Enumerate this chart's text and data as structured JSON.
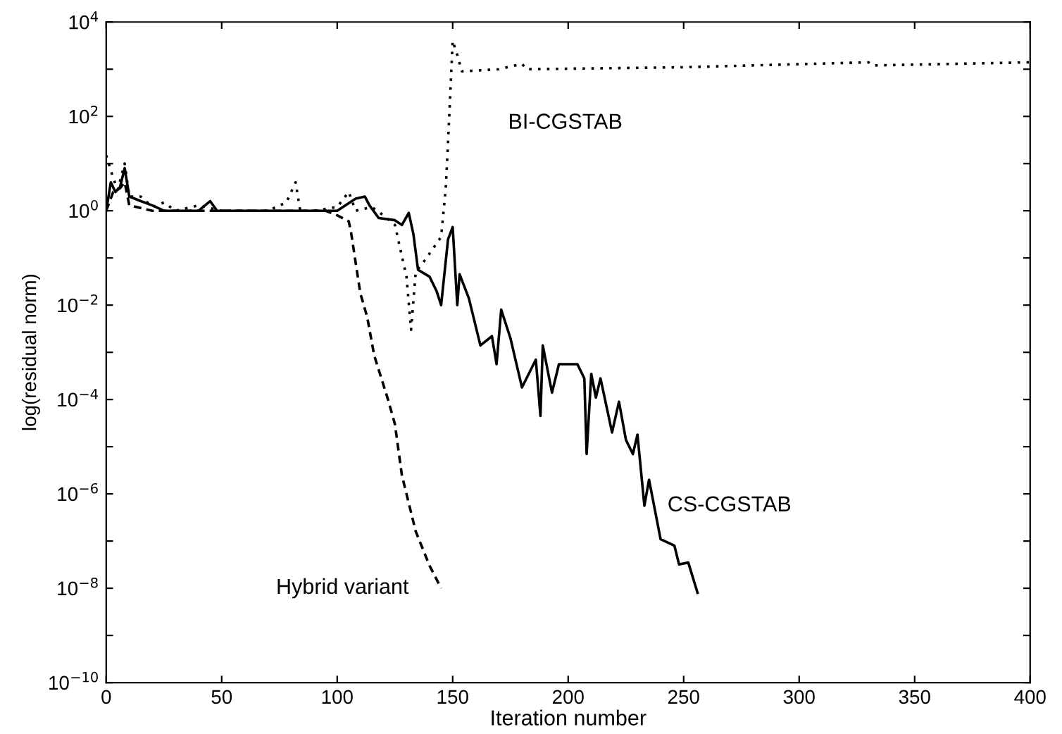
{
  "chart_data": {
    "type": "line",
    "xlabel": "Iteration number",
    "ylabel": "log(residual norm)",
    "log": "y",
    "xlim": [
      0,
      400
    ],
    "ylim": [
      1e-10,
      10000.0
    ],
    "xticks": [
      0,
      50,
      100,
      150,
      200,
      250,
      300,
      350,
      400
    ],
    "yticks": [
      {
        "value": 1e-10,
        "label": "10$^{−10}$"
      },
      {
        "value": 1e-09,
        "label": null
      },
      {
        "value": 1e-08,
        "label": "10$^{−8}$"
      },
      {
        "value": 1e-07,
        "label": null
      },
      {
        "value": 1e-06,
        "label": "10$^{−6}$"
      },
      {
        "value": 1e-05,
        "label": null
      },
      {
        "value": 0.0001,
        "label": "10$^{−4}$"
      },
      {
        "value": 0.001,
        "label": null
      },
      {
        "value": 0.01,
        "label": "10$^{−2}$"
      },
      {
        "value": 0.1,
        "label": null
      },
      {
        "value": 1,
        "label": "10$^{0}$"
      },
      {
        "value": 10,
        "label": null
      },
      {
        "value": 100,
        "label": "10$^{2}$"
      },
      {
        "value": 1000,
        "label": null
      },
      {
        "value": 10000,
        "label": "10$^{4}$"
      }
    ],
    "grid": false,
    "legend": false,
    "marker": "none",
    "series": [
      {
        "name": "BI-CGSTAB",
        "color": "#000000",
        "line_style": "dotted",
        "x": [
          0,
          3,
          5,
          8,
          10,
          15,
          20,
          25,
          30,
          40,
          50,
          70,
          78,
          82,
          84,
          90,
          100,
          105,
          108,
          115,
          120,
          125,
          128,
          130,
          132,
          134,
          138,
          145,
          147,
          148,
          150,
          152,
          154,
          170,
          180,
          182,
          250,
          330,
          332,
          400
        ],
        "values": [
          15,
          5,
          2.8,
          10,
          2,
          2,
          1.2,
          1.5,
          1,
          1.3,
          1,
          1,
          1.5,
          4,
          1,
          1,
          1.2,
          2.5,
          1,
          1.2,
          0.8,
          0.5,
          0.11,
          0.04,
          0.003,
          0.05,
          0.09,
          0.28,
          3,
          28,
          4000,
          2000,
          900,
          1000,
          1300,
          1000,
          1100,
          1400,
          1200,
          1400
        ]
      },
      {
        "name": "CS-CGSTAB",
        "color": "#000000",
        "line_style": "solid",
        "x": [
          0,
          2,
          4,
          6,
          8,
          10,
          15,
          20,
          25,
          40,
          45,
          48,
          60,
          80,
          100,
          108,
          112,
          114,
          118,
          125,
          128,
          131,
          133,
          135,
          140,
          143,
          145,
          148,
          150,
          152,
          153,
          157,
          162,
          167,
          169,
          171,
          175,
          180,
          186,
          188,
          189,
          193,
          196,
          204,
          207,
          208,
          210,
          212,
          214,
          219,
          222,
          225,
          228,
          230,
          233,
          235,
          240,
          246,
          248,
          252,
          256
        ],
        "values": [
          1,
          4,
          2.5,
          3.2,
          8,
          2,
          1.6,
          1.3,
          1,
          1,
          1.6,
          1,
          1,
          1,
          1,
          1.8,
          2,
          1.3,
          0.7,
          0.63,
          0.5,
          0.9,
          0.32,
          0.056,
          0.04,
          0.02,
          0.01,
          0.25,
          0.45,
          0.01,
          0.045,
          0.014,
          0.0014,
          0.0022,
          0.00056,
          0.008,
          0.002,
          0.00018,
          0.0007,
          4.5e-05,
          0.0014,
          0.00014,
          0.00056,
          0.00056,
          0.00028,
          7e-06,
          0.00035,
          0.00011,
          0.00028,
          2e-05,
          9e-05,
          1.4e-05,
          7e-06,
          1.8e-05,
          5.6e-07,
          2e-06,
          1.1e-07,
          8e-08,
          3.2e-08,
          3.5e-08,
          8e-09
        ]
      },
      {
        "name": "Hybrid variant",
        "color": "#000000",
        "line_style": "dashed",
        "x": [
          0,
          3,
          6,
          8,
          10,
          20,
          60,
          95,
          100,
          105,
          106,
          110,
          113,
          116,
          122,
          125,
          128,
          134,
          140,
          145
        ],
        "values": [
          1,
          2.5,
          3,
          4,
          1.3,
          1,
          1,
          1,
          0.8,
          0.6,
          0.35,
          0.018,
          0.0056,
          0.00087,
          0.0001,
          3e-05,
          2.5e-06,
          1.6e-07,
          3e-08,
          1e-08
        ]
      }
    ]
  }
}
